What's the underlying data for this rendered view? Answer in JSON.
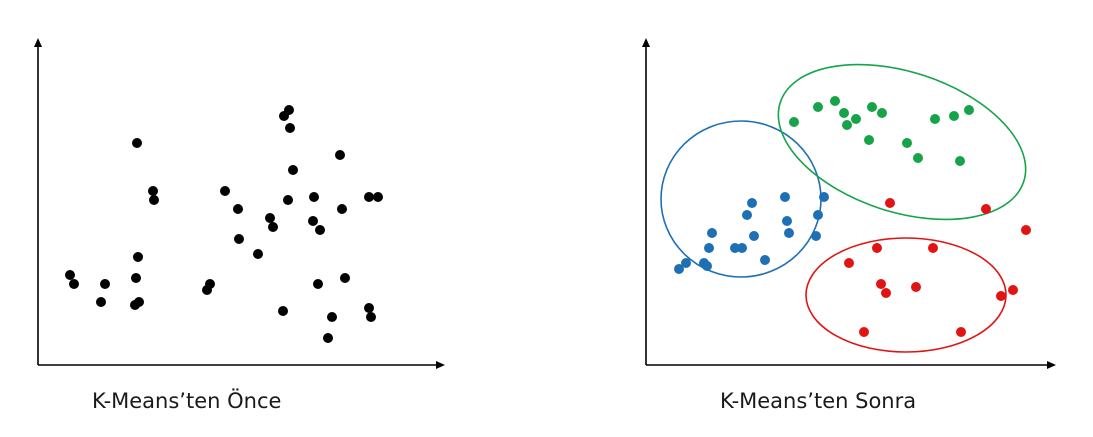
{
  "captions": {
    "before": "K-Means’ten Önce",
    "after": "K-Means’ten Sonra"
  },
  "colors": {
    "axis": "#000000",
    "unclustered_point": "#000000",
    "cluster_blue": "#1f6fb5",
    "cluster_green": "#16a34a",
    "cluster_red": "#e11414"
  },
  "chart_data": [
    {
      "type": "scatter",
      "title": "",
      "caption": "K-Means’ten Önce",
      "axes": "unlabeled",
      "points": [
        [
          36,
          27
        ],
        [
          32,
          30
        ],
        [
          63,
          21
        ],
        [
          67,
          27
        ],
        [
          97,
          20
        ],
        [
          98,
          29
        ],
        [
          101,
          21
        ],
        [
          99,
          74
        ],
        [
          100,
          36
        ],
        [
          115,
          58
        ],
        [
          116,
          55
        ],
        [
          169,
          25
        ],
        [
          172,
          27
        ],
        [
          187,
          58
        ],
        [
          200,
          52
        ],
        [
          201,
          42
        ],
        [
          220,
          37
        ],
        [
          235,
          46
        ],
        [
          232,
          49
        ],
        [
          245,
          18
        ],
        [
          246,
          83
        ],
        [
          250,
          55
        ],
        [
          255,
          65
        ],
        [
          252,
          79
        ],
        [
          251,
          85
        ],
        [
          276,
          56
        ],
        [
          275,
          48
        ],
        [
          282,
          45
        ],
        [
          280,
          27
        ],
        [
          294,
          16
        ],
        [
          290,
          9
        ],
        [
          302,
          70
        ],
        [
          304,
          52
        ],
        [
          307,
          29
        ],
        [
          331,
          56
        ],
        [
          333,
          16
        ],
        [
          331,
          19
        ],
        [
          340,
          56
        ]
      ]
    },
    {
      "type": "scatter",
      "title": "",
      "caption": "K-Means’ten Sonra",
      "axes": "unlabeled",
      "clusters": [
        {
          "color": "blue",
          "points": [
            [
              33,
              32
            ],
            [
              40,
              34
            ],
            [
              58,
              34
            ],
            [
              61,
              33
            ],
            [
              63,
              39
            ],
            [
              66,
              44
            ],
            [
              89,
              39
            ],
            [
              96,
              39
            ],
            [
              101,
              50
            ],
            [
              106,
              54
            ],
            [
              108,
              43
            ],
            [
              119,
              35
            ],
            [
              139,
              56
            ],
            [
              141,
              48
            ],
            [
              143,
              44
            ],
            [
              170,
              43
            ],
            [
              172,
              50
            ],
            [
              178,
              56
            ]
          ]
        },
        {
          "color": "green",
          "points": [
            [
              148,
              81
            ],
            [
              172,
              86
            ],
            [
              189,
              88
            ],
            [
              198,
              84
            ],
            [
              201,
              80
            ],
            [
              210,
              82
            ],
            [
              223,
              75
            ],
            [
              226,
              86
            ],
            [
              236,
              84
            ],
            [
              261,
              74
            ],
            [
              272,
              69
            ],
            [
              289,
              82
            ],
            [
              308,
              83
            ],
            [
              314,
              68
            ],
            [
              323,
              85
            ]
          ]
        },
        {
          "color": "red",
          "points": [
            [
              203,
              34
            ],
            [
              218,
              11
            ],
            [
              231,
              39
            ],
            [
              235,
              27
            ],
            [
              240,
              24
            ],
            [
              244,
              54
            ],
            [
              270,
              26
            ],
            [
              287,
              39
            ],
            [
              315,
              11
            ],
            [
              340,
              52
            ],
            [
              355,
              23
            ],
            [
              367,
              25
            ],
            [
              380,
              45
            ]
          ]
        }
      ]
    }
  ]
}
